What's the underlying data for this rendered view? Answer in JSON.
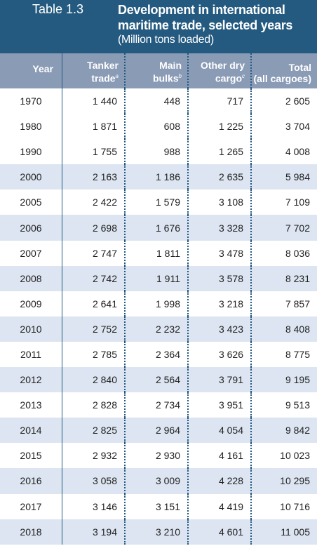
{
  "header": {
    "label": "Table 1.3",
    "title_lines": [
      "Development in international",
      "maritime trade, selected years"
    ],
    "subtitle": "(Million tons loaded)"
  },
  "table": {
    "columns": [
      {
        "lines": [
          "Year"
        ]
      },
      {
        "lines": [
          "Tanker",
          "trade"
        ],
        "note": "a"
      },
      {
        "lines": [
          "Main",
          "bulks"
        ],
        "note": "b"
      },
      {
        "lines": [
          "Other dry",
          "cargo"
        ],
        "note": "c"
      },
      {
        "lines": [
          "Total",
          "(all cargoes)"
        ]
      }
    ],
    "rows": [
      [
        "1970",
        "1 440",
        "448",
        "717",
        "2 605"
      ],
      [
        "1980",
        "1 871",
        "608",
        "1 225",
        "3 704"
      ],
      [
        "1990",
        "1 755",
        "988",
        "1 265",
        "4 008"
      ],
      [
        "2000",
        "2 163",
        "1 186",
        "2 635",
        "5 984"
      ],
      [
        "2005",
        "2 422",
        "1 579",
        "3 108",
        "7 109"
      ],
      [
        "2006",
        "2 698",
        "1 676",
        "3 328",
        "7 702"
      ],
      [
        "2007",
        "2 747",
        "1 811",
        "3 478",
        "8 036"
      ],
      [
        "2008",
        "2 742",
        "1 911",
        "3 578",
        "8 231"
      ],
      [
        "2009",
        "2 641",
        "1 998",
        "3 218",
        "7 857"
      ],
      [
        "2010",
        "2 752",
        "2 232",
        "3 423",
        "8 408"
      ],
      [
        "2011",
        "2 785",
        "2 364",
        "3 626",
        "8 775"
      ],
      [
        "2012",
        "2 840",
        "2 564",
        "3 791",
        "9 195"
      ],
      [
        "2013",
        "2 828",
        "2 734",
        "3 951",
        "9 513"
      ],
      [
        "2014",
        "2 825",
        "2 964",
        "4 054",
        "9 842"
      ],
      [
        "2015",
        "2 932",
        "2 930",
        "4 161",
        "10 023"
      ],
      [
        "2016",
        "3 058",
        "3 009",
        "4 228",
        "10 295"
      ],
      [
        "2017",
        "3 146",
        "3 151",
        "4 419",
        "10 716"
      ],
      [
        "2018",
        "3 194",
        "3 210",
        "4 601",
        "11 005"
      ]
    ]
  }
}
